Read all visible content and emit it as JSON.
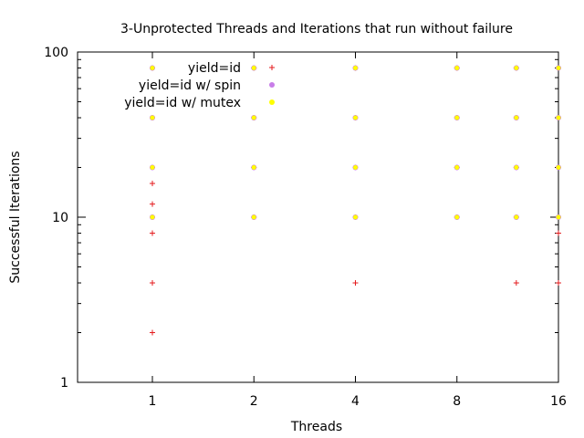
{
  "chart_data": {
    "type": "scatter",
    "title": "3-Unprotected Threads and Iterations that run without failure",
    "xlabel": "Threads",
    "ylabel": "Successful Iterations",
    "x_scale": "log2",
    "y_scale": "log10",
    "xlim": [
      0.6,
      16
    ],
    "ylim": [
      1,
      100
    ],
    "x_ticks": [
      1,
      2,
      4,
      8,
      16
    ],
    "x_tick_labels": [
      "1",
      "2",
      "4",
      "8",
      "16"
    ],
    "y_ticks": [
      1,
      10,
      100
    ],
    "y_tick_labels": [
      "1",
      "10",
      "100"
    ],
    "grid": false,
    "legend_position": "top-left",
    "series": [
      {
        "name": "yield=id",
        "marker": "plus",
        "color": "#e41a1c",
        "points": [
          [
            1,
            2
          ],
          [
            1,
            4
          ],
          [
            1,
            8
          ],
          [
            1,
            10
          ],
          [
            1,
            12
          ],
          [
            1,
            16
          ],
          [
            1,
            20
          ],
          [
            1,
            40
          ],
          [
            1,
            80
          ],
          [
            2,
            10
          ],
          [
            2,
            20
          ],
          [
            2,
            40
          ],
          [
            2,
            80
          ],
          [
            4,
            4
          ],
          [
            4,
            10
          ],
          [
            4,
            20
          ],
          [
            4,
            40
          ],
          [
            4,
            80
          ],
          [
            8,
            10
          ],
          [
            8,
            20
          ],
          [
            8,
            40
          ],
          [
            8,
            80
          ],
          [
            12,
            4
          ],
          [
            12,
            10
          ],
          [
            12,
            20
          ],
          [
            12,
            40
          ],
          [
            12,
            80
          ],
          [
            16,
            4
          ],
          [
            16,
            8
          ],
          [
            16,
            10
          ],
          [
            16,
            20
          ],
          [
            16,
            40
          ],
          [
            16,
            80
          ]
        ]
      },
      {
        "name": "yield=id w/ spin",
        "marker": "circle",
        "color": "#c87de8",
        "points": [
          [
            1,
            10
          ],
          [
            1,
            20
          ],
          [
            1,
            40
          ],
          [
            1,
            80
          ],
          [
            2,
            10
          ],
          [
            2,
            20
          ],
          [
            2,
            40
          ],
          [
            2,
            80
          ],
          [
            4,
            10
          ],
          [
            4,
            20
          ],
          [
            4,
            40
          ],
          [
            4,
            80
          ],
          [
            8,
            10
          ],
          [
            8,
            20
          ],
          [
            8,
            40
          ],
          [
            8,
            80
          ],
          [
            12,
            10
          ],
          [
            12,
            20
          ],
          [
            12,
            40
          ],
          [
            12,
            80
          ],
          [
            16,
            10
          ],
          [
            16,
            20
          ],
          [
            16,
            40
          ],
          [
            16,
            80
          ]
        ]
      },
      {
        "name": "yield=id w/ mutex",
        "marker": "circle",
        "color": "#ffff00",
        "points": [
          [
            1,
            10
          ],
          [
            1,
            20
          ],
          [
            1,
            40
          ],
          [
            1,
            80
          ],
          [
            2,
            10
          ],
          [
            2,
            20
          ],
          [
            2,
            40
          ],
          [
            2,
            80
          ],
          [
            4,
            10
          ],
          [
            4,
            20
          ],
          [
            4,
            40
          ],
          [
            4,
            80
          ],
          [
            8,
            10
          ],
          [
            8,
            20
          ],
          [
            8,
            40
          ],
          [
            8,
            80
          ],
          [
            12,
            10
          ],
          [
            12,
            20
          ],
          [
            12,
            40
          ],
          [
            12,
            80
          ],
          [
            16,
            10
          ],
          [
            16,
            20
          ],
          [
            16,
            40
          ],
          [
            16,
            80
          ]
        ]
      }
    ]
  }
}
